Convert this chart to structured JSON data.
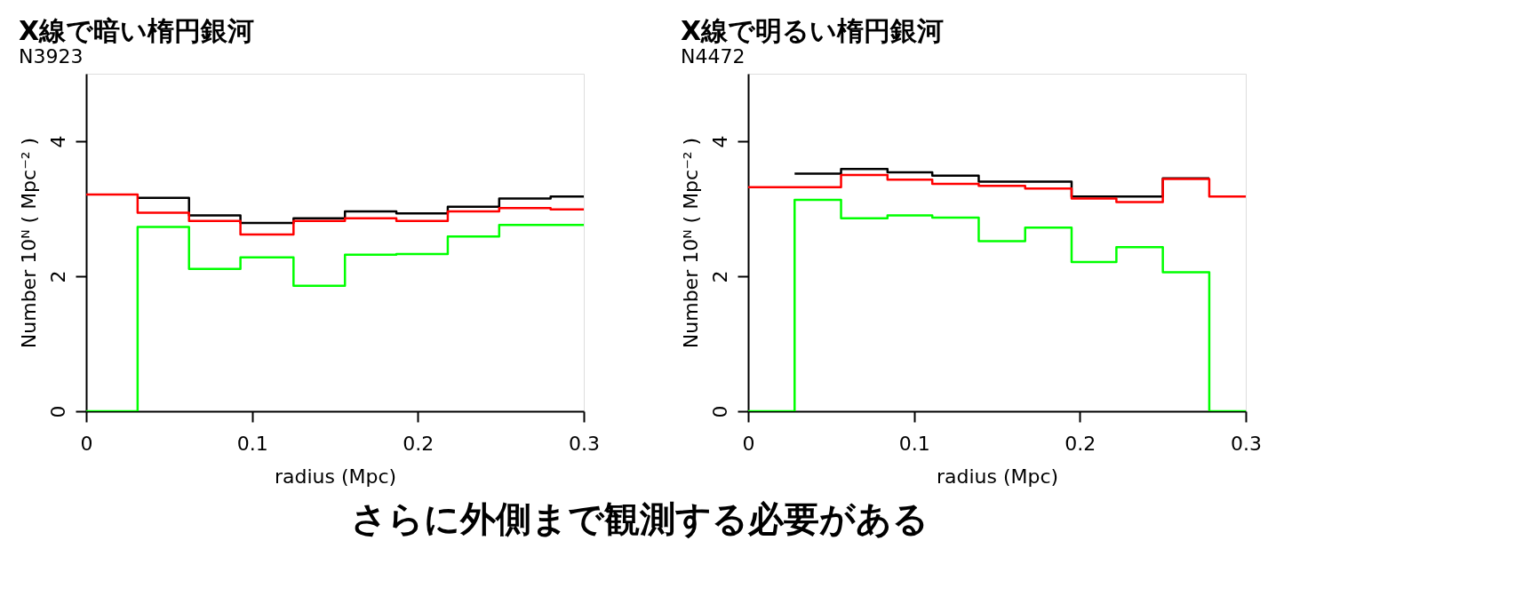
{
  "chart_data": [
    {
      "type": "step",
      "title": "X線で暗い楕円銀河",
      "subtitle": "N3923",
      "xlabel": "radius (Mpc)",
      "ylabel": "Number 10ᴺ ( Mpc⁻² )",
      "x": [
        0,
        0.031,
        0.062,
        0.093,
        0.125,
        0.156,
        0.187,
        0.218,
        0.249,
        0.28,
        0.3
      ],
      "series": [
        {
          "color": "#000000",
          "x": [
            0.031,
            0.062,
            0.093,
            0.125,
            0.156,
            0.187,
            0.218,
            0.249,
            0.28,
            0.3
          ],
          "values": [
            3.16,
            2.9,
            2.79,
            2.86,
            2.96,
            2.93,
            3.03,
            3.15,
            3.18,
            3.18
          ]
        },
        {
          "color": "#ff0000",
          "values": [
            3.21,
            2.94,
            2.82,
            2.62,
            2.82,
            2.86,
            2.82,
            2.96,
            3.01,
            2.99,
            2.99
          ]
        },
        {
          "color": "#00ff00",
          "values": [
            0,
            2.73,
            2.11,
            2.28,
            1.86,
            2.32,
            2.33,
            2.59,
            2.76,
            2.76,
            2.76
          ]
        }
      ],
      "xlim": [
        0,
        0.3
      ],
      "ylim": [
        0,
        5
      ],
      "xticks": [
        0,
        0.1,
        0.2,
        0.3
      ],
      "yticks": [
        0,
        2,
        4
      ],
      "grid": false,
      "legend": false,
      "annotations": [
        "さらに外側まで観測する必要がある"
      ]
    },
    {
      "type": "step",
      "title": "X線で明るい楕円銀河",
      "subtitle": "N4472",
      "xlabel": "radius (Mpc)",
      "ylabel": "Number 10ᴺ ( Mpc⁻² )",
      "x": [
        0,
        0.028,
        0.056,
        0.084,
        0.111,
        0.139,
        0.167,
        0.195,
        0.222,
        0.25,
        0.278,
        0.3
      ],
      "series": [
        {
          "color": "#000000",
          "x": [
            0.028,
            0.056,
            0.084,
            0.111,
            0.139,
            0.167,
            0.195,
            0.222,
            0.25,
            0.278
          ],
          "values": [
            3.52,
            3.59,
            3.54,
            3.49,
            3.4,
            3.4,
            3.18,
            3.18,
            3.45,
            3.45
          ]
        },
        {
          "color": "#ff0000",
          "values": [
            3.32,
            3.32,
            3.5,
            3.43,
            3.37,
            3.34,
            3.3,
            3.15,
            3.1,
            3.44,
            3.18,
            3.18
          ]
        },
        {
          "color": "#00ff00",
          "values": [
            0,
            3.13,
            2.86,
            2.9,
            2.87,
            2.52,
            2.72,
            2.21,
            2.43,
            2.06,
            0,
            0
          ]
        }
      ],
      "xlim": [
        0,
        0.3
      ],
      "ylim": [
        0,
        5
      ],
      "xticks": [
        0,
        0.1,
        0.2,
        0.3
      ],
      "yticks": [
        0,
        2,
        4
      ],
      "grid": false,
      "legend": false
    }
  ]
}
